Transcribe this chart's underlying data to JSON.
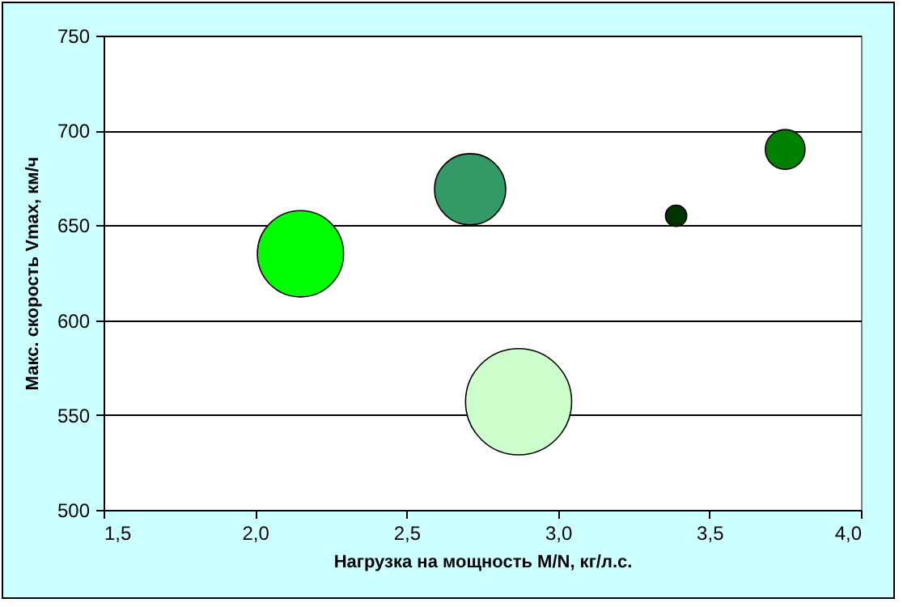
{
  "chart_data": {
    "type": "bubble",
    "xlabel": "Нагрузка на мощность M/N, кг/л.с.",
    "ylabel": "Макс. скорость Vmax, км/ч",
    "x": [
      2.15,
      2.71,
      2.87,
      3.39,
      3.75
    ],
    "values": [
      635,
      669,
      557,
      655,
      690
    ],
    "sizes": [
      0.66,
      0.45,
      1,
      0.04,
      0.14
    ],
    "colors": [
      "#00ff00",
      "#339966",
      "#ccffcc",
      "#003300",
      "#008000"
    ],
    "xlim": [
      1.5,
      4.0
    ],
    "xticks": [
      {
        "value": 1.5,
        "label": "1,5"
      },
      {
        "value": 2.0,
        "label": "2,0"
      },
      {
        "value": 2.5,
        "label": "2,5"
      },
      {
        "value": 3.0,
        "label": "3,0"
      },
      {
        "value": 3.5,
        "label": "3,5"
      },
      {
        "value": 4.0,
        "label": "4,0"
      }
    ],
    "ylim": [
      500,
      750
    ],
    "yticks": [
      500,
      550,
      600,
      650,
      700,
      750
    ],
    "grid": "y"
  }
}
